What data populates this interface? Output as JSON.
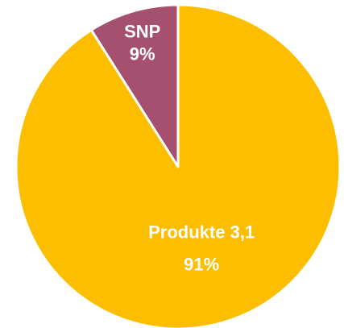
{
  "chart_data": {
    "type": "pie",
    "title": "",
    "slices": [
      {
        "name": "SNP",
        "value": 9,
        "label": "SNP",
        "percent_label": "9%",
        "color": "#A5506E"
      },
      {
        "name": "Produkte 3,1",
        "value": 91,
        "label": "Produkte 3,1",
        "percent_label": "91%",
        "color": "#FDBE00"
      }
    ],
    "start_angle_deg": 0,
    "direction": "counterclockwise",
    "slice_border_color": "#ffffff",
    "legend": "none"
  }
}
